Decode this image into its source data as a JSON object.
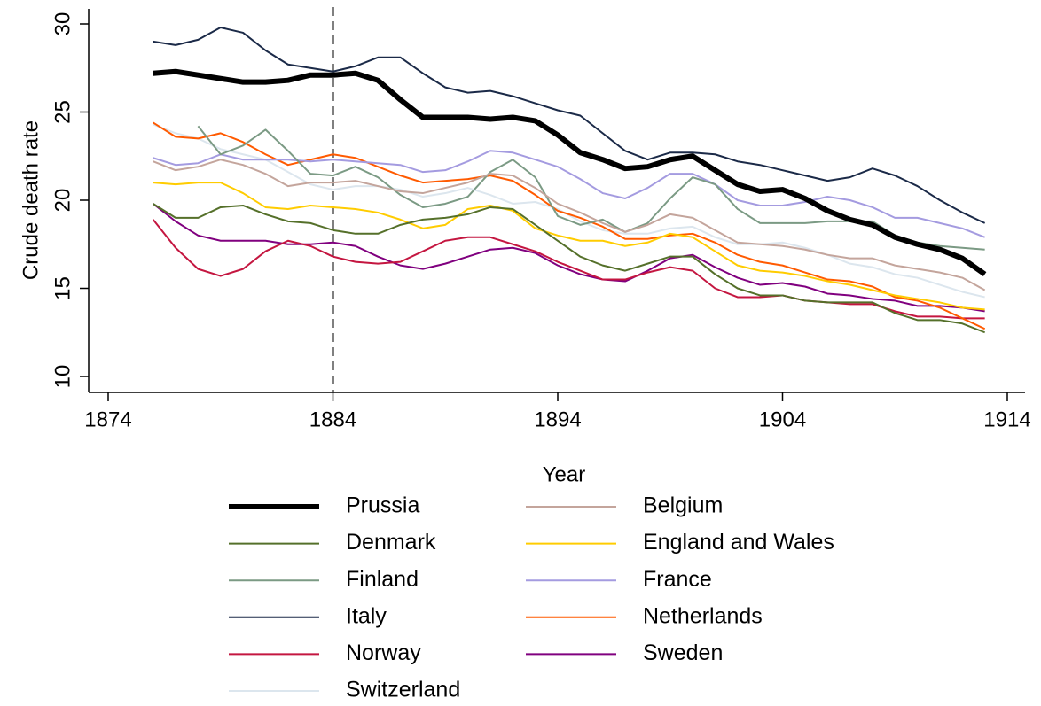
{
  "chart_data": {
    "type": "line",
    "x_label": "Year",
    "y_label": "Crude death rate",
    "x": [
      1876,
      1877,
      1878,
      1879,
      1880,
      1881,
      1882,
      1883,
      1884,
      1885,
      1886,
      1887,
      1888,
      1889,
      1890,
      1891,
      1892,
      1893,
      1894,
      1895,
      1896,
      1897,
      1898,
      1899,
      1900,
      1901,
      1902,
      1903,
      1904,
      1905,
      1906,
      1907,
      1908,
      1909,
      1910,
      1911,
      1912,
      1913
    ],
    "xlim": [
      1874,
      1914
    ],
    "xticks": [
      1874,
      1884,
      1894,
      1904,
      1914
    ],
    "ylim": [
      10,
      30
    ],
    "yticks": [
      10,
      15,
      20,
      25,
      30
    ],
    "vline": 1884,
    "series": [
      {
        "name": "Prussia",
        "color": "#000000",
        "values": [
          27.2,
          27.3,
          27.1,
          26.9,
          26.7,
          26.7,
          26.8,
          27.1,
          27.1,
          27.2,
          26.8,
          25.7,
          24.7,
          24.7,
          24.7,
          24.6,
          24.7,
          24.5,
          23.7,
          22.7,
          22.3,
          21.8,
          21.9,
          22.3,
          22.5,
          21.7,
          20.9,
          20.5,
          20.6,
          20.1,
          19.4,
          18.9,
          18.6,
          17.9,
          17.5,
          17.2,
          16.7,
          15.8
        ]
      },
      {
        "name": "Belgium",
        "color": "#c4a59c",
        "values": [
          22.2,
          21.7,
          21.9,
          22.3,
          22.0,
          21.5,
          20.8,
          21.0,
          21.0,
          21.1,
          20.8,
          20.5,
          20.4,
          20.7,
          21.0,
          21.5,
          21.4,
          20.7,
          19.8,
          19.3,
          18.7,
          18.2,
          18.6,
          19.2,
          19.0,
          18.3,
          17.6,
          17.5,
          17.4,
          17.2,
          16.9,
          16.7,
          16.7,
          16.3,
          16.1,
          15.9,
          15.6,
          14.9
        ]
      },
      {
        "name": "Denmark",
        "color": "#55702a",
        "values": [
          19.8,
          19.0,
          19.0,
          19.6,
          19.7,
          19.2,
          18.8,
          18.7,
          18.3,
          18.1,
          18.1,
          18.6,
          18.9,
          19.0,
          19.2,
          19.6,
          19.5,
          18.6,
          17.7,
          16.8,
          16.3,
          16.0,
          16.4,
          16.8,
          16.8,
          15.8,
          15.0,
          14.6,
          14.6,
          14.3,
          14.2,
          14.2,
          14.2,
          13.6,
          13.2,
          13.2,
          13.0,
          12.5
        ]
      },
      {
        "name": "England and Wales",
        "color": "#ffcc00",
        "values": [
          21.0,
          20.9,
          21.0,
          21.0,
          20.4,
          19.6,
          19.5,
          19.7,
          19.6,
          19.5,
          19.3,
          18.9,
          18.4,
          18.6,
          19.5,
          19.7,
          19.4,
          18.4,
          18.0,
          17.7,
          17.7,
          17.4,
          17.6,
          18.1,
          17.9,
          17.1,
          16.3,
          16.0,
          15.9,
          15.7,
          15.4,
          15.2,
          14.9,
          14.6,
          14.4,
          14.2,
          13.9,
          13.8
        ]
      },
      {
        "name": "Finland",
        "color": "#7b9a84",
        "values": [
          null,
          null,
          24.2,
          22.6,
          23.1,
          24.0,
          22.8,
          21.5,
          21.4,
          21.9,
          21.3,
          20.3,
          19.6,
          19.8,
          20.2,
          21.6,
          22.3,
          21.3,
          19.1,
          18.6,
          18.9,
          18.2,
          18.7,
          20.1,
          21.3,
          20.9,
          19.5,
          18.7,
          18.7,
          18.7,
          18.8,
          18.8,
          18.8,
          18.0,
          17.6,
          17.4,
          17.3,
          17.2
        ]
      },
      {
        "name": "France",
        "color": "#a49be0",
        "values": [
          22.4,
          22.0,
          22.1,
          22.6,
          22.3,
          22.3,
          22.3,
          22.2,
          22.3,
          22.2,
          22.1,
          22.0,
          21.6,
          21.7,
          22.2,
          22.8,
          22.7,
          22.3,
          21.9,
          21.2,
          20.4,
          20.1,
          20.7,
          21.5,
          21.5,
          20.9,
          20.0,
          19.7,
          19.7,
          19.9,
          20.2,
          20.0,
          19.6,
          19.0,
          19.0,
          18.7,
          18.4,
          17.9
        ]
      },
      {
        "name": "Italy",
        "color": "#1b2a48",
        "values": [
          29.0,
          28.8,
          29.1,
          29.8,
          29.5,
          28.5,
          27.7,
          27.5,
          27.3,
          27.6,
          28.1,
          28.1,
          27.2,
          26.4,
          26.1,
          26.2,
          25.9,
          25.5,
          25.1,
          24.8,
          23.8,
          22.8,
          22.3,
          22.7,
          22.7,
          22.6,
          22.2,
          22.0,
          21.7,
          21.4,
          21.1,
          21.3,
          21.8,
          21.4,
          20.8,
          20.0,
          19.3,
          18.7
        ]
      },
      {
        "name": "Netherlands",
        "color": "#ff5a00",
        "values": [
          24.4,
          23.6,
          23.5,
          23.8,
          23.3,
          22.6,
          22.0,
          22.3,
          22.6,
          22.4,
          21.9,
          21.4,
          21.0,
          21.1,
          21.2,
          21.4,
          21.1,
          20.3,
          19.4,
          19.0,
          18.5,
          17.8,
          17.8,
          18.0,
          18.1,
          17.6,
          16.9,
          16.5,
          16.3,
          15.9,
          15.5,
          15.4,
          15.1,
          14.5,
          14.3,
          13.9,
          13.3,
          12.7
        ]
      },
      {
        "name": "Norway",
        "color": "#c41640",
        "values": [
          18.9,
          17.3,
          16.1,
          15.7,
          16.1,
          17.1,
          17.7,
          17.4,
          16.8,
          16.5,
          16.4,
          16.5,
          17.1,
          17.7,
          17.9,
          17.9,
          17.5,
          17.1,
          16.5,
          16.0,
          15.5,
          15.5,
          15.9,
          16.2,
          16.0,
          15.0,
          14.5,
          14.5,
          14.6,
          14.3,
          14.2,
          14.1,
          14.1,
          13.7,
          13.4,
          13.4,
          13.3,
          13.3
        ]
      },
      {
        "name": "Sweden",
        "color": "#80007f",
        "values": [
          19.8,
          18.8,
          18.0,
          17.7,
          17.7,
          17.7,
          17.5,
          17.5,
          17.6,
          17.4,
          16.8,
          16.3,
          16.1,
          16.4,
          16.8,
          17.2,
          17.3,
          17.0,
          16.3,
          15.8,
          15.5,
          15.4,
          16.0,
          16.7,
          16.9,
          16.2,
          15.6,
          15.2,
          15.3,
          15.1,
          14.7,
          14.6,
          14.4,
          14.3,
          14.0,
          14.0,
          13.9,
          13.7
        ]
      },
      {
        "name": "Switzerland",
        "color": "#dce6ee",
        "values": [
          24.3,
          23.8,
          23.5,
          22.9,
          22.6,
          22.3,
          21.6,
          20.9,
          20.6,
          20.8,
          20.8,
          20.6,
          20.2,
          20.4,
          20.7,
          20.3,
          19.8,
          19.9,
          19.5,
          18.8,
          18.3,
          18.1,
          18.1,
          18.4,
          18.5,
          17.9,
          17.5,
          17.5,
          17.6,
          17.3,
          16.9,
          16.4,
          16.2,
          15.8,
          15.6,
          15.2,
          14.8,
          14.5
        ]
      }
    ]
  }
}
